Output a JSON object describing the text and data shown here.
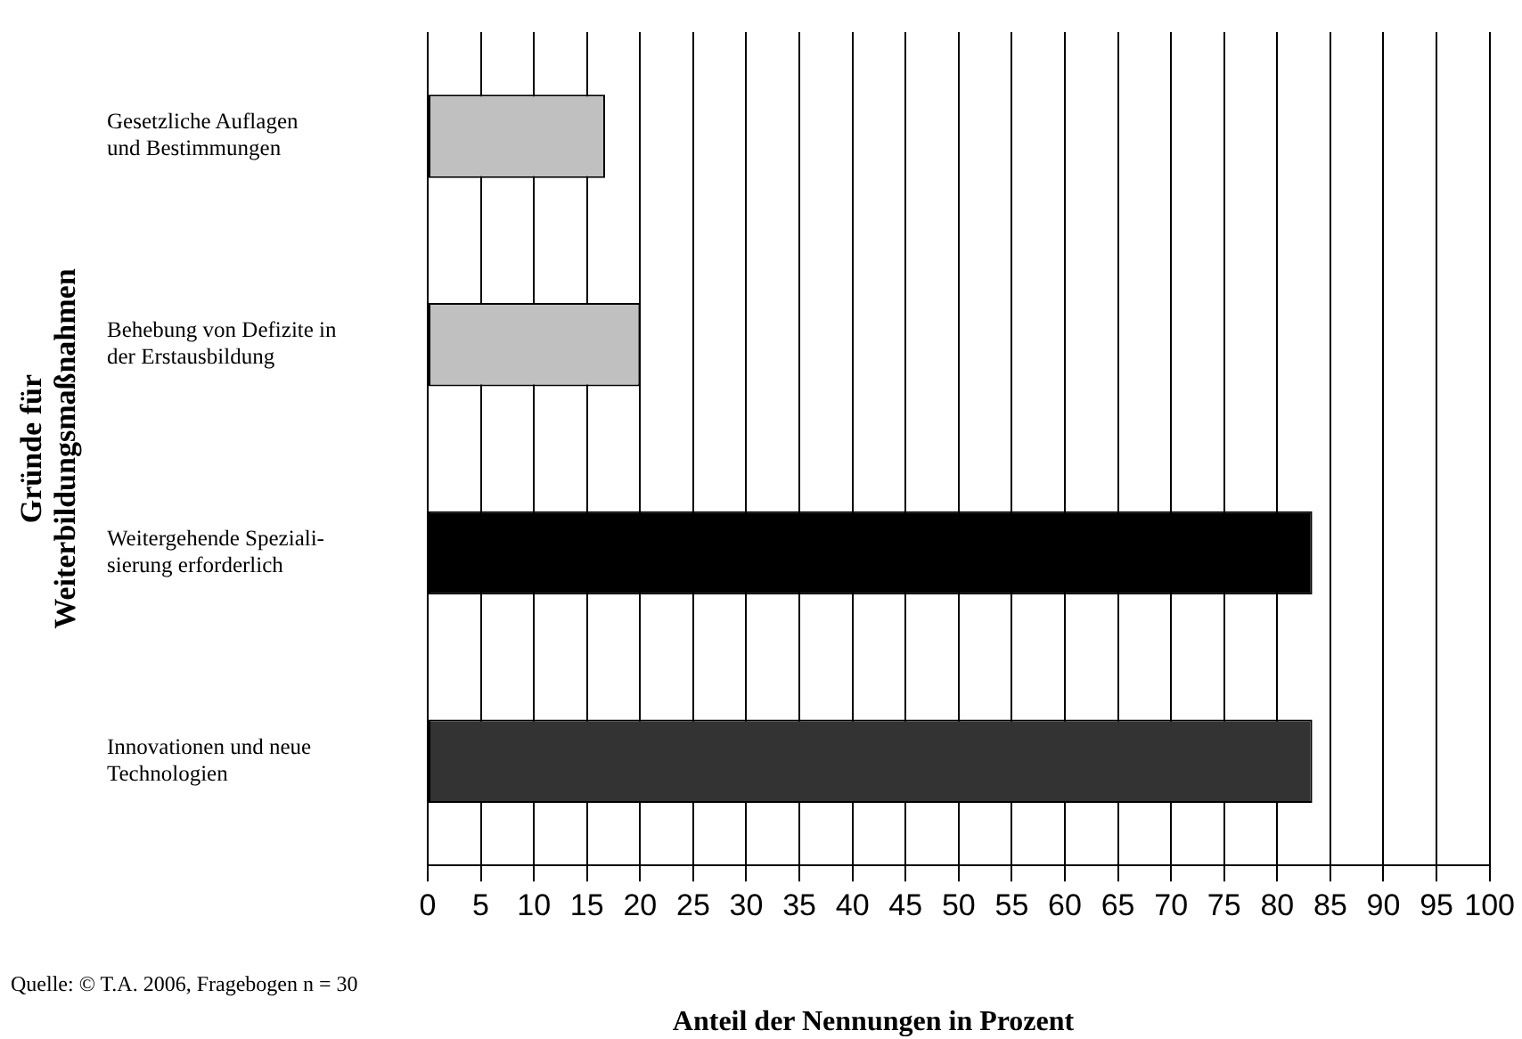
{
  "chart_data": {
    "type": "bar",
    "orientation": "horizontal",
    "ylabel": "Gründe für\nWeiterbildungsmaßnahmen",
    "xlabel": "Anteil der Nennungen in Prozent",
    "categories": [
      "Gesetzliche Auflagen\nund Bestimmungen",
      "Behebung von Defizite in\nder Erstausbildung",
      "Weitergehende Speziali-\nsierung erforderlich",
      "Innovationen und neue\nTechnologien"
    ],
    "values": [
      16.7,
      20,
      83.3,
      83.3
    ],
    "colors": [
      "#c0c0c0",
      "#c0c0c0",
      "#000000",
      "#333333"
    ],
    "xlim": [
      0,
      100
    ],
    "xticks": [
      0,
      5,
      10,
      15,
      20,
      25,
      30,
      35,
      40,
      45,
      50,
      55,
      60,
      65,
      70,
      75,
      80,
      85,
      90,
      95,
      100
    ],
    "grid": "x",
    "legend": false,
    "annotations": [
      "Quelle: © T.A. 2006, Fragebogen n = 30"
    ]
  }
}
